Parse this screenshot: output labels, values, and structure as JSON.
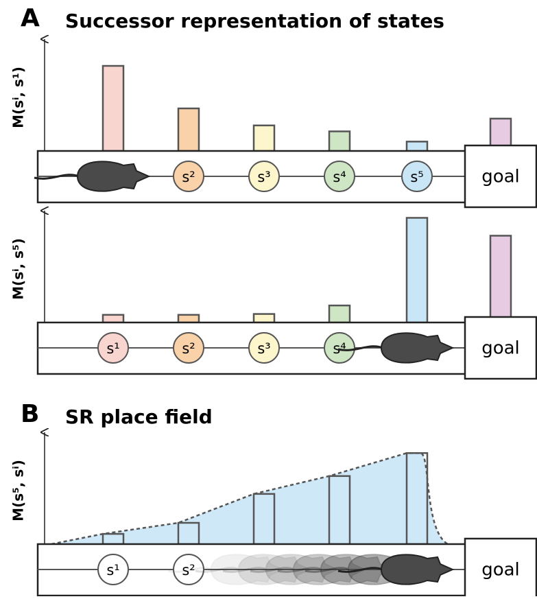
{
  "panels": [
    {
      "letter": "A",
      "title": "Successor representation of states"
    },
    {
      "letter": "B",
      "title": "SR place field"
    }
  ],
  "chart_data": [
    {
      "type": "bar",
      "ylabel": "M(sⁱ, s¹)",
      "categories": [
        null,
        "s²",
        "s³",
        "s⁴",
        "s⁵",
        "goal"
      ],
      "values": [
        1.0,
        0.5,
        0.3,
        0.23,
        0.11,
        0.38
      ],
      "colors": [
        "#f9d5cf",
        "#fad2aa",
        "#fdf5cc",
        "#cfe6c5",
        "#c9e6f7",
        "#e6cbe3"
      ],
      "ylim": [
        0,
        1.25
      ],
      "agent": 0
    },
    {
      "type": "bar",
      "ylabel": "M(sⁱ, s⁵)",
      "categories": [
        "s¹",
        "s²",
        "s³",
        "s⁴",
        null,
        "goal"
      ],
      "values": [
        0.09,
        0.09,
        0.1,
        0.2,
        1.23,
        1.02
      ],
      "colors": [
        "#f9d5cf",
        "#fad2aa",
        "#fdf5cc",
        "#cfe6c5",
        "#c9e6f7",
        "#e6cbe3"
      ],
      "ylim": [
        0,
        1.25
      ],
      "agent": 4
    },
    {
      "type": "bar",
      "ylabel": "M(s⁵, sⁱ)",
      "categories": [
        "s¹",
        "s²",
        null,
        null,
        null,
        "goal"
      ],
      "values": [
        0.12,
        0.25,
        0.59,
        0.8,
        1.07,
        null
      ],
      "colors": [
        "#c9e6f7",
        "#c9e6f7",
        "#c9e6f7",
        "#c9e6f7",
        "#c9e6f7",
        "#c9e6f7"
      ],
      "ylim": [
        0,
        1.25
      ],
      "agent": 4,
      "area": true
    }
  ]
}
